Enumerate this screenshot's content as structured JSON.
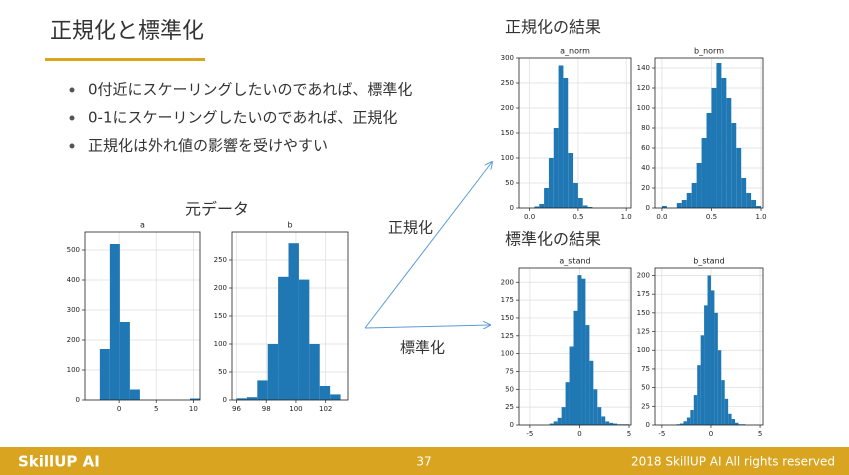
{
  "header": {
    "title": "正規化と標準化"
  },
  "bullets": [
    "0付近にスケーリングしたいのであれば、標準化",
    "0-1にスケーリングしたいのであれば、正規化",
    "正規化は外れ値の影響を受けやすい"
  ],
  "labels": {
    "original": "元データ",
    "norm_result": "正規化の結果",
    "stand_result": "標準化の結果",
    "norm_arrow": "正規化",
    "stand_arrow": "標準化"
  },
  "footer": {
    "brand": "SkillUP AI",
    "page": "37",
    "copyright": "2018 SkillUP AI All rights reserved"
  },
  "chart_data": [
    {
      "type": "histogram",
      "title": "a",
      "color": "#1f77b4",
      "bins": [
        -2.6,
        -1.25,
        0.1,
        1.45,
        2.8,
        4.15,
        5.5,
        6.85,
        8.2,
        9.55,
        10.9
      ],
      "counts": [
        170,
        520,
        260,
        35,
        0,
        0,
        0,
        0,
        0,
        5
      ],
      "xlim": [
        -4.6,
        10.9
      ],
      "ylim": [
        0,
        560
      ],
      "xticks": [
        0,
        5,
        10
      ],
      "yticks": [
        0,
        100,
        200,
        300,
        400,
        500
      ],
      "grid": true
    },
    {
      "type": "histogram",
      "title": "b",
      "color": "#1f77b4",
      "bins": [
        96,
        96.7,
        97.4,
        98.1,
        98.8,
        99.5,
        100.2,
        100.9,
        101.6,
        102.3,
        103
      ],
      "counts": [
        3,
        5,
        35,
        100,
        220,
        280,
        215,
        100,
        25,
        10
      ],
      "xlim": [
        95.7,
        103.5
      ],
      "ylim": [
        0,
        300
      ],
      "xticks": [
        96,
        98,
        100,
        102
      ],
      "yticks": [
        0,
        50,
        100,
        150,
        200,
        250
      ],
      "grid": true
    },
    {
      "type": "histogram",
      "title": "a_norm",
      "color": "#1f77b4",
      "bins": [
        0.05,
        0.1,
        0.15,
        0.2,
        0.25,
        0.3,
        0.35,
        0.4,
        0.45,
        0.5,
        0.55,
        0.6,
        0.65
      ],
      "counts": [
        3,
        8,
        40,
        100,
        160,
        285,
        260,
        110,
        50,
        20,
        5,
        2
      ],
      "xlim": [
        -0.11,
        1.05
      ],
      "ylim": [
        0,
        300
      ],
      "xticks": [
        {
          "value": 0,
          "label": "0.0"
        },
        {
          "value": 0.5,
          "label": "0.5"
        },
        {
          "value": 1,
          "label": "1.0"
        }
      ],
      "yticks": [
        0,
        50,
        100,
        150,
        200,
        250,
        300
      ],
      "grid": true
    },
    {
      "type": "histogram",
      "title": "b_norm",
      "color": "#1f77b4",
      "bins": [
        0,
        0.05,
        0.1,
        0.15,
        0.2,
        0.25,
        0.3,
        0.35,
        0.4,
        0.45,
        0.5,
        0.55,
        0.6,
        0.65,
        0.7,
        0.75,
        0.8,
        0.85,
        0.9,
        0.95,
        1
      ],
      "counts": [
        2,
        0,
        0,
        5,
        8,
        15,
        25,
        45,
        70,
        95,
        120,
        145,
        130,
        110,
        85,
        60,
        30,
        15,
        8,
        2
      ],
      "xlim": [
        -0.07,
        1.02
      ],
      "ylim": [
        0,
        150
      ],
      "xticks": [
        {
          "value": 0,
          "label": "0.0"
        },
        {
          "value": 0.5,
          "label": "0.5"
        },
        {
          "value": 1,
          "label": "1.0"
        }
      ],
      "yticks": [
        0,
        20,
        40,
        60,
        80,
        100,
        120,
        140
      ],
      "grid": true
    },
    {
      "type": "histogram",
      "title": "a_stand",
      "color": "#1f77b4",
      "bins": [
        -3,
        -2.6,
        -2.2,
        -1.8,
        -1.4,
        -1,
        -0.6,
        -0.2,
        0.2,
        0.6,
        1,
        1.4,
        1.8,
        2.2,
        2.6,
        3,
        3.4,
        3.8,
        4.2,
        4.6,
        5
      ],
      "counts": [
        2,
        5,
        10,
        25,
        60,
        110,
        160,
        210,
        205,
        140,
        90,
        50,
        25,
        12,
        5,
        3,
        2,
        1,
        1,
        1
      ],
      "xlim": [
        -6.1,
        5.2
      ],
      "ylim": [
        0,
        220
      ],
      "xticks": [
        -5,
        0,
        5
      ],
      "yticks": [
        0,
        25,
        50,
        75,
        100,
        125,
        150,
        175,
        200
      ],
      "grid": true
    },
    {
      "type": "histogram",
      "title": "b_stand",
      "color": "#1f77b4",
      "bins": [
        -3.5,
        -3.15,
        -2.8,
        -2.45,
        -2.1,
        -1.75,
        -1.4,
        -1.05,
        -0.7,
        -0.35,
        0,
        0.35,
        0.7,
        1.05,
        1.4,
        1.75,
        2.1,
        2.45,
        2.8,
        3.15,
        3.5
      ],
      "counts": [
        1,
        2,
        5,
        10,
        20,
        40,
        80,
        120,
        160,
        200,
        180,
        150,
        100,
        60,
        35,
        15,
        8,
        3,
        1,
        1
      ],
      "xlim": [
        -5.7,
        5.3
      ],
      "ylim": [
        0,
        210
      ],
      "xticks": [
        -5,
        0,
        5
      ],
      "yticks": [
        0,
        25,
        50,
        75,
        100,
        125,
        150,
        175,
        200
      ],
      "grid": true
    }
  ]
}
